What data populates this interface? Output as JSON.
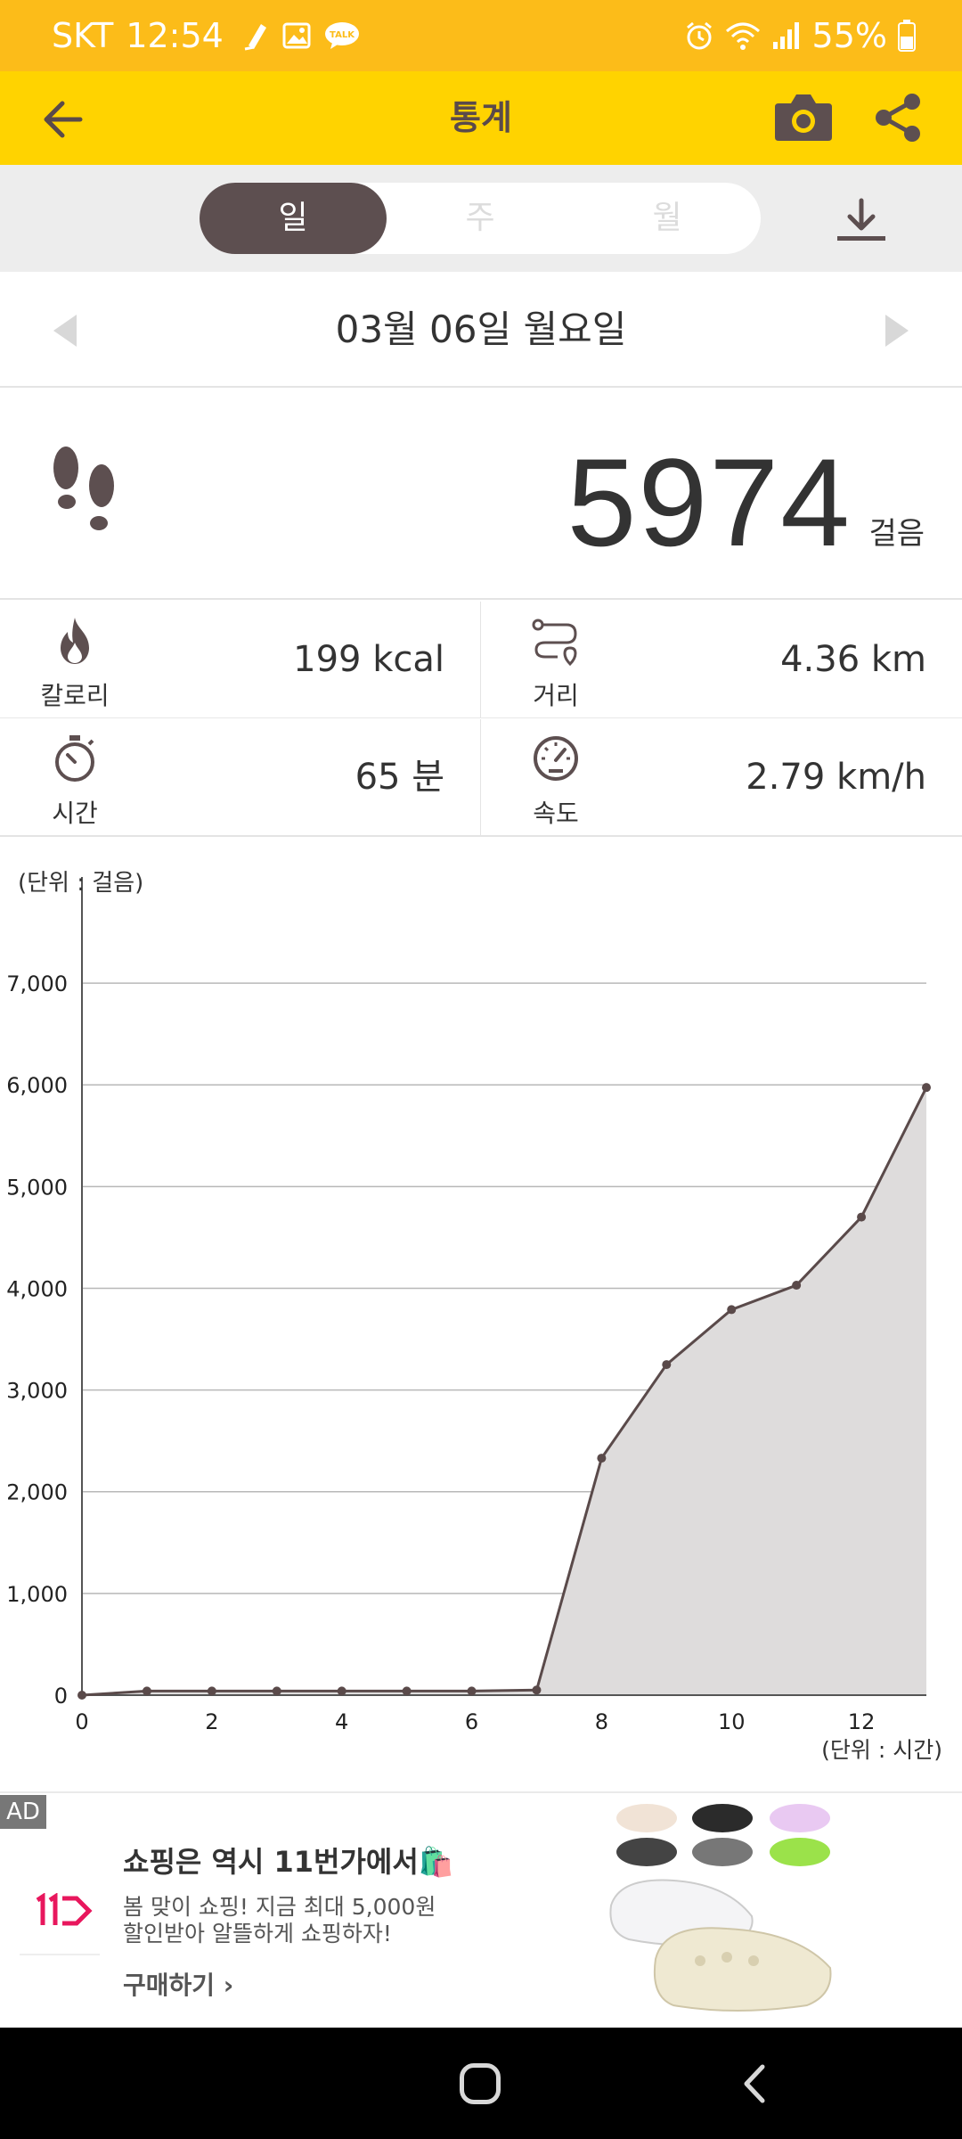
{
  "status_bar": {
    "carrier": "SKT",
    "time": "12:54",
    "notification_icons": [
      "pen-icon",
      "image-icon",
      "talk-icon"
    ],
    "status_icons": [
      "alarm-icon",
      "wifi-icon",
      "signal-icon"
    ],
    "battery": "55%"
  },
  "app_bar": {
    "title": "통계",
    "icons": [
      "back-arrow-icon",
      "camera-icon",
      "share-icon"
    ]
  },
  "period_tabs": {
    "items": [
      {
        "label": "일",
        "active": true
      },
      {
        "label": "주",
        "active": false
      },
      {
        "label": "월",
        "active": false
      }
    ]
  },
  "date_nav": {
    "date": "03월 06일 월요일"
  },
  "steps": {
    "count": "5974",
    "unit": "걸음"
  },
  "stats": {
    "calorie": {
      "label": "칼로리",
      "value": "199 kcal"
    },
    "distance": {
      "label": "거리",
      "value": "4.36 km"
    },
    "time": {
      "label": "시간",
      "value": "65 분"
    },
    "speed": {
      "label": "속도",
      "value": "2.79 km/h"
    }
  },
  "colors": {
    "status_bar": "#FCBC19",
    "app_bar": "#FFD300",
    "active_tab": "#5d4f50",
    "icon": "#5d4f50",
    "chart_fill": "#dedcdc",
    "chart_line": "#5a4a4a"
  },
  "chart_data": {
    "type": "area",
    "ylabel": "(단위 : 걸음)",
    "xlabel": "(단위 : 시간)",
    "x": [
      0,
      1,
      2,
      3,
      4,
      5,
      6,
      7,
      8,
      9,
      10,
      11,
      12,
      13
    ],
    "values": [
      0,
      40,
      40,
      40,
      40,
      40,
      40,
      50,
      2330,
      3250,
      3790,
      4030,
      4700,
      5974
    ],
    "xticks": [
      0,
      2,
      4,
      6,
      8,
      10,
      12
    ],
    "xtick_labels": [
      "0",
      "2",
      "4",
      "6",
      "8",
      "10",
      "12"
    ],
    "yticks": [
      0,
      1000,
      2000,
      3000,
      4000,
      5000,
      6000,
      7000
    ],
    "ytick_labels": [
      "0",
      "1,000",
      "2,000",
      "3,000",
      "4,000",
      "5,000",
      "6,000",
      "7,000"
    ],
    "xlim": [
      0,
      13
    ],
    "ylim": [
      0,
      7500
    ],
    "grid": true
  },
  "ad": {
    "badge": "AD",
    "headline": "쇼핑은 역시 11번가에서🛍️",
    "line1": "봄 맞이 쇼핑! 지금 최대 5,000원",
    "line2": "할인받아 알뜰하게 쇼핑하자!",
    "cta": "구매하기",
    "brand_icon": "11st-logo-icon",
    "image_icon": "shoes-image-icon"
  },
  "nav_bar": {
    "icons": [
      "home-icon",
      "back-icon"
    ]
  }
}
